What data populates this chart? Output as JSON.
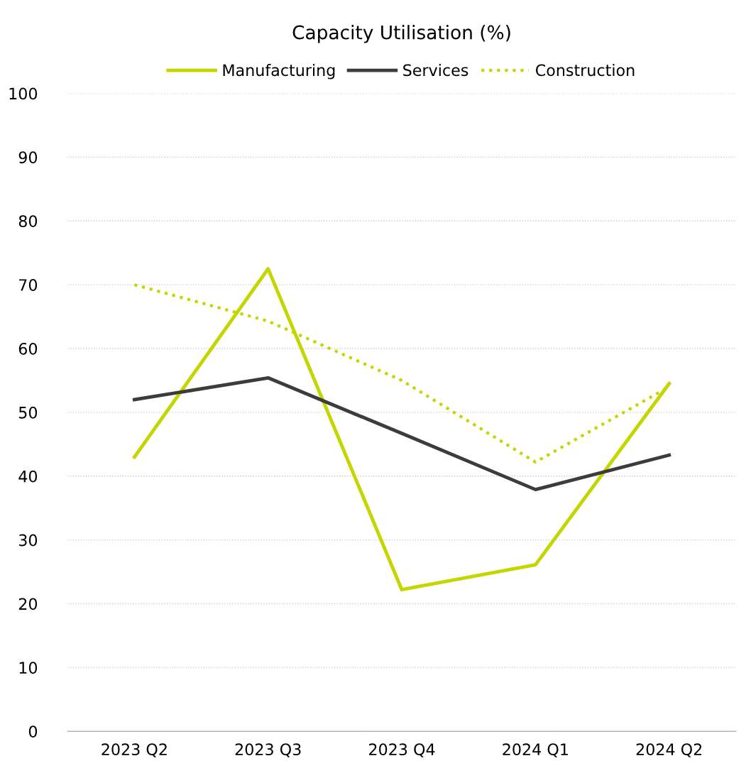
{
  "chart_data": {
    "type": "line",
    "title": "Capacity Utilisation (%)",
    "categories": [
      "2023 Q2",
      "2023 Q3",
      "2023 Q4",
      "2024 Q1",
      "2024 Q2"
    ],
    "series": [
      {
        "name": "Manufacturing",
        "color": "#c4d600",
        "values": [
          43,
          72.5,
          22.2,
          26.1,
          54.5
        ],
        "line_style": "solid"
      },
      {
        "name": "Services",
        "color": "#3c3c3c",
        "values": [
          52,
          55.4,
          46.7,
          37.9,
          43.3
        ],
        "line_style": "solid"
      },
      {
        "name": "Construction",
        "color": "#c4d600",
        "values": [
          70,
          64.3,
          55,
          42.2,
          54
        ],
        "line_style": "dotted"
      }
    ],
    "ylim": [
      0,
      100
    ],
    "yticks": [
      0,
      10,
      20,
      30,
      40,
      50,
      60,
      70,
      80,
      90,
      100
    ],
    "grid": "y",
    "legend": "top",
    "marker": "none"
  }
}
